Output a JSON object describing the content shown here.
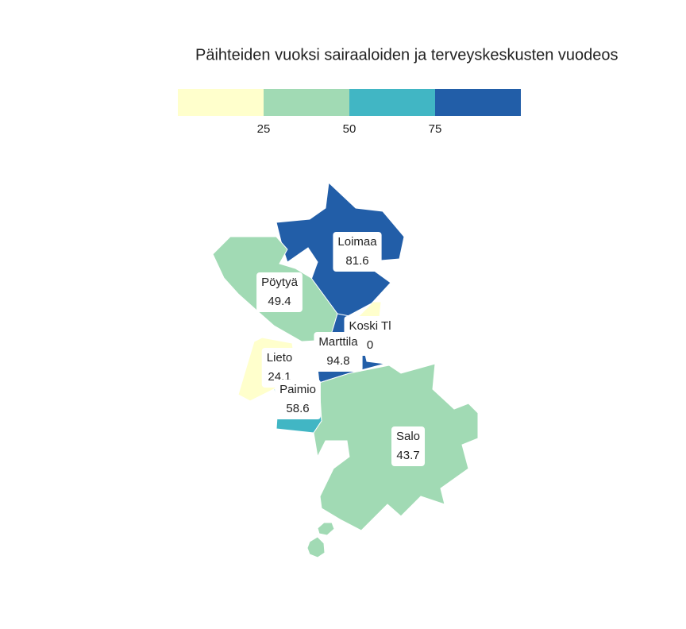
{
  "chart_data": {
    "type": "choropleth",
    "title": "Päihteiden vuoksi sairaaloiden ja terveyskeskusten vuodeos",
    "categories": [
      "Loimaa",
      "Pöytyä",
      "Koski Tl",
      "Marttila",
      "Lieto",
      "Paimio",
      "Salo"
    ],
    "values": [
      81.6,
      49.4,
      0,
      94.8,
      24.1,
      58.6,
      43.7
    ],
    "colorbar": {
      "xlim": [
        0,
        100
      ],
      "xticks": [
        25,
        50,
        75
      ],
      "colors": [
        "#ffffcc",
        "#a1dab4",
        "#41b6c4",
        "#225ea8"
      ]
    }
  }
}
